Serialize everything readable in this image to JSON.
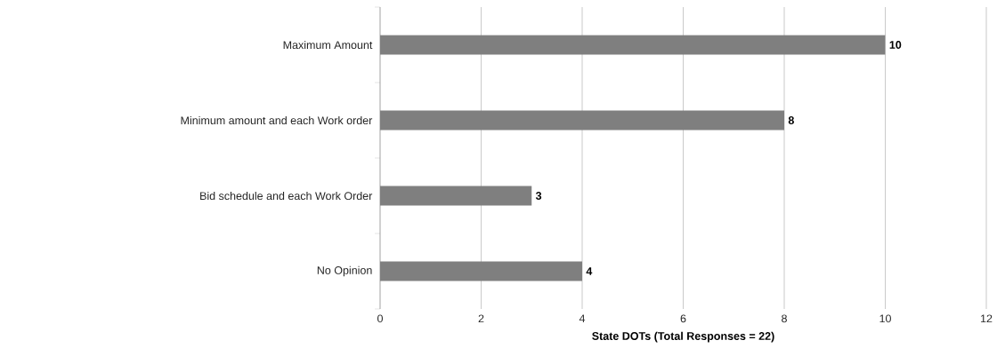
{
  "chart_data": {
    "type": "bar",
    "orientation": "horizontal",
    "categories": [
      "Maximum Amount",
      "Minimum amount and each Work order",
      "Bid schedule and each Work Order",
      "No Opinion"
    ],
    "values": [
      10,
      8,
      3,
      4
    ],
    "color": "#7f7f7f",
    "xlim": [
      0,
      12
    ],
    "xticks": [
      0,
      2,
      4,
      6,
      8,
      10,
      12
    ],
    "xlabel": "State DOTs (Total Responses = 22)",
    "grid": "x",
    "data_labels": true
  }
}
